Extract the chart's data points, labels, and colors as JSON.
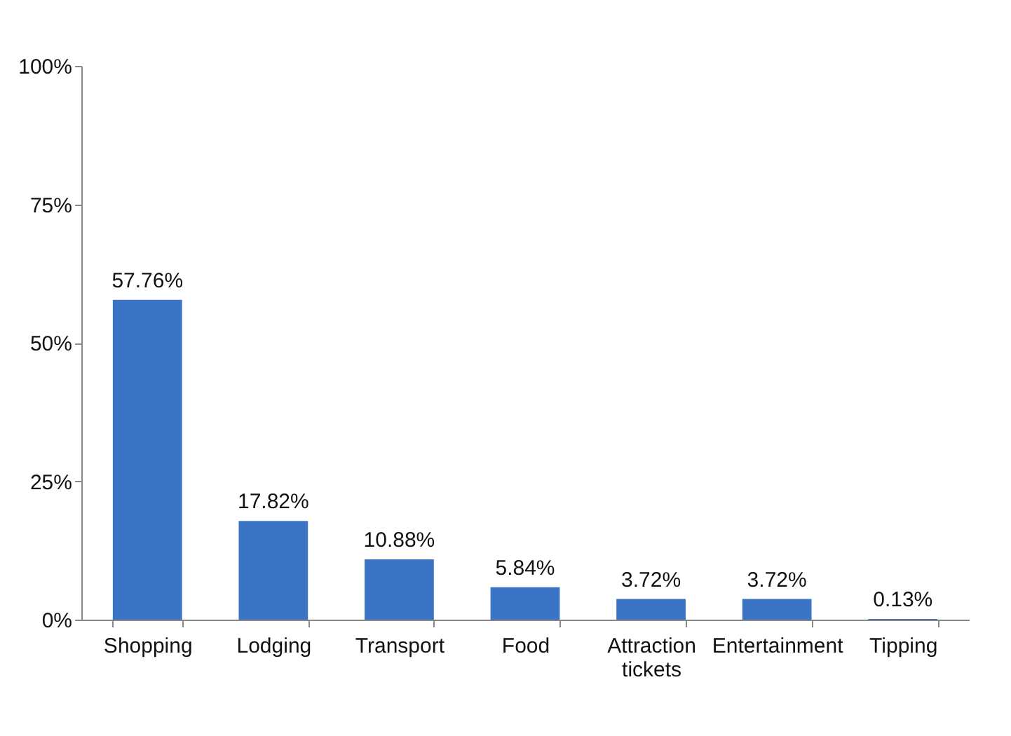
{
  "chart_data": {
    "type": "bar",
    "categories": [
      "Shopping",
      "Lodging",
      "Transport",
      "Food",
      "Attraction tickets",
      "Entertainment",
      "Tipping"
    ],
    "values": [
      57.76,
      17.82,
      10.88,
      5.84,
      3.72,
      3.72,
      0.13
    ],
    "value_labels": [
      "57.76%",
      "17.82%",
      "10.88%",
      "5.84%",
      "3.72%",
      "3.72%",
      "0.13%"
    ],
    "color": "#3b74c4",
    "ylim": [
      0,
      100
    ],
    "yticks": [
      {
        "value": 0,
        "label": "0%"
      },
      {
        "value": 25,
        "label": "25%"
      },
      {
        "value": 50,
        "label": "50%"
      },
      {
        "value": 75,
        "label": "75%"
      },
      {
        "value": 100,
        "label": "100%"
      }
    ],
    "grid": false
  }
}
